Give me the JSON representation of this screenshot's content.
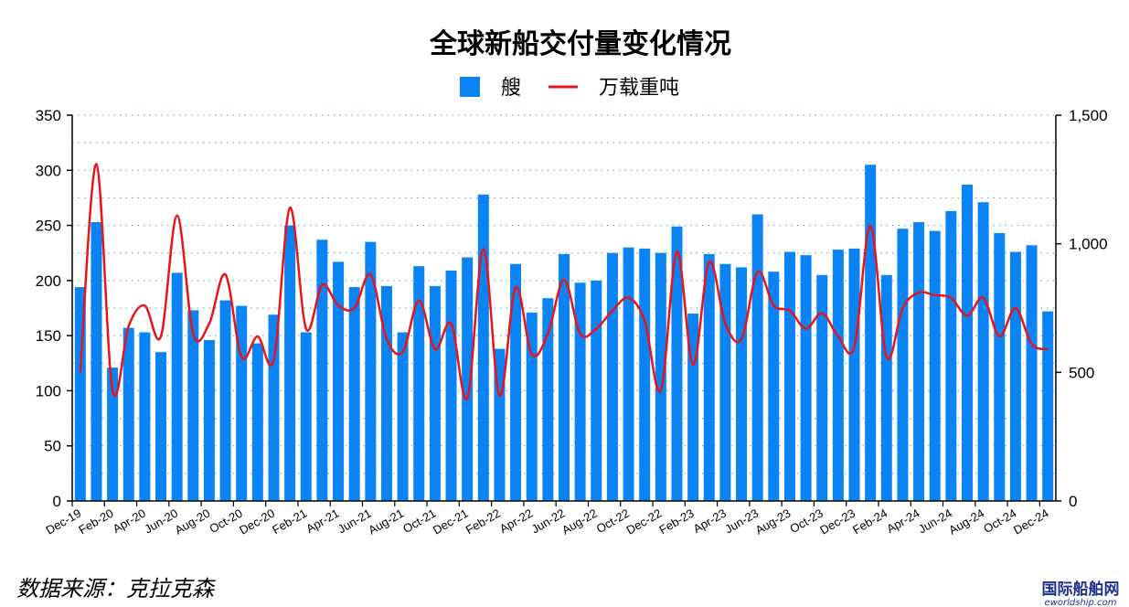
{
  "chart_data": {
    "type": "bar",
    "title": "全球新船交付量变化情况",
    "legend": [
      "艘",
      "万载重吨"
    ],
    "legend_position": "top-center",
    "grid": true,
    "colors": {
      "bar": "#0a84f5",
      "line": "#e8141b"
    },
    "categories": [
      "Dec-19",
      "Jan-20",
      "Feb-20",
      "Mar-20",
      "Apr-20",
      "May-20",
      "Jun-20",
      "Jul-20",
      "Aug-20",
      "Sep-20",
      "Oct-20",
      "Nov-20",
      "Dec-20",
      "Jan-21",
      "Feb-21",
      "Mar-21",
      "Apr-21",
      "May-21",
      "Jun-21",
      "Jul-21",
      "Aug-21",
      "Sep-21",
      "Oct-21",
      "Nov-21",
      "Dec-21",
      "Jan-22",
      "Feb-22",
      "Mar-22",
      "Apr-22",
      "May-22",
      "Jun-22",
      "Jul-22",
      "Aug-22",
      "Sep-22",
      "Oct-22",
      "Nov-22",
      "Dec-22",
      "Jan-23",
      "Feb-23",
      "Mar-23",
      "Apr-23",
      "May-23",
      "Jun-23",
      "Jul-23",
      "Aug-23",
      "Sep-23",
      "Oct-23",
      "Nov-23",
      "Dec-23",
      "Jan-24",
      "Feb-24",
      "Mar-24",
      "Apr-24",
      "May-24",
      "Jun-24",
      "Jul-24",
      "Aug-24",
      "Sep-24",
      "Oct-24",
      "Nov-24",
      "Dec-24"
    ],
    "x_tick_labels": [
      "Dec-19",
      "Feb-20",
      "Apr-20",
      "Jun-20",
      "Aug-20",
      "Oct-20",
      "Dec-20",
      "Feb-21",
      "Apr-21",
      "Jun-21",
      "Aug-21",
      "Oct-21",
      "Dec-21",
      "Feb-22",
      "Apr-22",
      "Jun-22",
      "Aug-22",
      "Oct-22",
      "Dec-22",
      "Feb-23",
      "Apr-23",
      "Jun-23",
      "Aug-23",
      "Oct-23",
      "Dec-23",
      "Feb-24",
      "Apr-24",
      "Jun-24",
      "Aug-24",
      "Oct-24",
      "Dec-24"
    ],
    "series": [
      {
        "name": "艘",
        "type": "bar",
        "axis": "left",
        "values": [
          194,
          253,
          121,
          157,
          153,
          135,
          207,
          173,
          146,
          182,
          177,
          143,
          169,
          250,
          153,
          237,
          217,
          194,
          235,
          195,
          153,
          213,
          195,
          209,
          221,
          278,
          138,
          215,
          171,
          184,
          224,
          198,
          200,
          225,
          230,
          229,
          225,
          249,
          170,
          224,
          215,
          212,
          260,
          208,
          226,
          223,
          205,
          228,
          229,
          305,
          205,
          247,
          253,
          245,
          263,
          287,
          271,
          243,
          226,
          232,
          172
        ]
      },
      {
        "name": "万载重吨",
        "type": "line",
        "axis": "right",
        "values": [
          500,
          1310,
          430,
          680,
          760,
          640,
          1110,
          650,
          690,
          880,
          560,
          640,
          550,
          1140,
          670,
          840,
          760,
          750,
          880,
          630,
          580,
          780,
          590,
          690,
          400,
          980,
          410,
          830,
          570,
          650,
          860,
          650,
          670,
          740,
          790,
          700,
          430,
          970,
          530,
          930,
          690,
          630,
          890,
          760,
          740,
          670,
          730,
          640,
          600,
          1070,
          560,
          750,
          810,
          800,
          790,
          720,
          790,
          640,
          750,
          610,
          590
        ]
      }
    ],
    "ylim_left": [
      0,
      350
    ],
    "yticks_left": [
      "0",
      "50",
      "100",
      "150",
      "200",
      "250",
      "300",
      "350"
    ],
    "ylim_right": [
      0,
      1500
    ],
    "yticks_right": [
      "0",
      "500",
      "1,000",
      "1,500"
    ]
  },
  "source_note": "数据来源：克拉克森",
  "watermark": {
    "name": "国际船舶网",
    "url": "eworldship.com"
  }
}
